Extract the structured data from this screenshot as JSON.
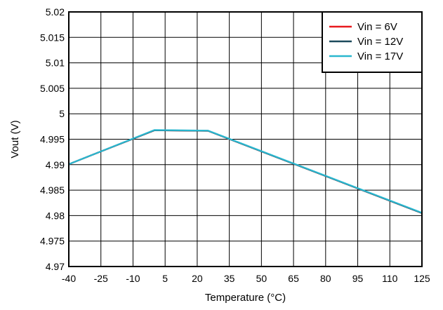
{
  "chart_data": {
    "type": "line",
    "title": "",
    "xlabel": "Temperature (°C)",
    "ylabel": "Vout (V)",
    "xlim": [
      -40,
      125
    ],
    "ylim": [
      4.97,
      5.02
    ],
    "grid": true,
    "legend_position": "top-right",
    "x_ticks": [
      -40,
      -25,
      -10,
      5,
      20,
      35,
      50,
      65,
      80,
      95,
      110,
      125
    ],
    "x_tick_labels": [
      "-40",
      "-25",
      "-10",
      "5",
      "20",
      "35",
      "50",
      "65",
      "80",
      "95",
      "110",
      "125"
    ],
    "y_ticks": [
      4.97,
      4.975,
      4.98,
      4.985,
      4.99,
      4.995,
      5.0,
      5.005,
      5.01,
      5.015,
      5.02
    ],
    "y_tick_labels": [
      "4.97",
      "4.975",
      "4.98",
      "4.985",
      "4.99",
      "4.995",
      "5",
      "5.005",
      "5.01",
      "5.015",
      "5.02"
    ],
    "series": [
      {
        "name": "Vin = 6V",
        "color": "#e8191e",
        "x": [
          -40,
          0,
          25,
          125
        ],
        "y": [
          4.9901,
          4.99675,
          4.99665,
          4.9805
        ]
      },
      {
        "name": "Vin = 12V",
        "color": "#1c4a5c",
        "x": [
          -40,
          0,
          25,
          125
        ],
        "y": [
          4.9901,
          4.99675,
          4.99665,
          4.9805
        ]
      },
      {
        "name": "Vin = 17V",
        "color": "#2ab7cf",
        "x": [
          -40,
          0,
          25,
          125
        ],
        "y": [
          4.9901,
          4.9968,
          4.9967,
          4.98055
        ]
      }
    ]
  }
}
